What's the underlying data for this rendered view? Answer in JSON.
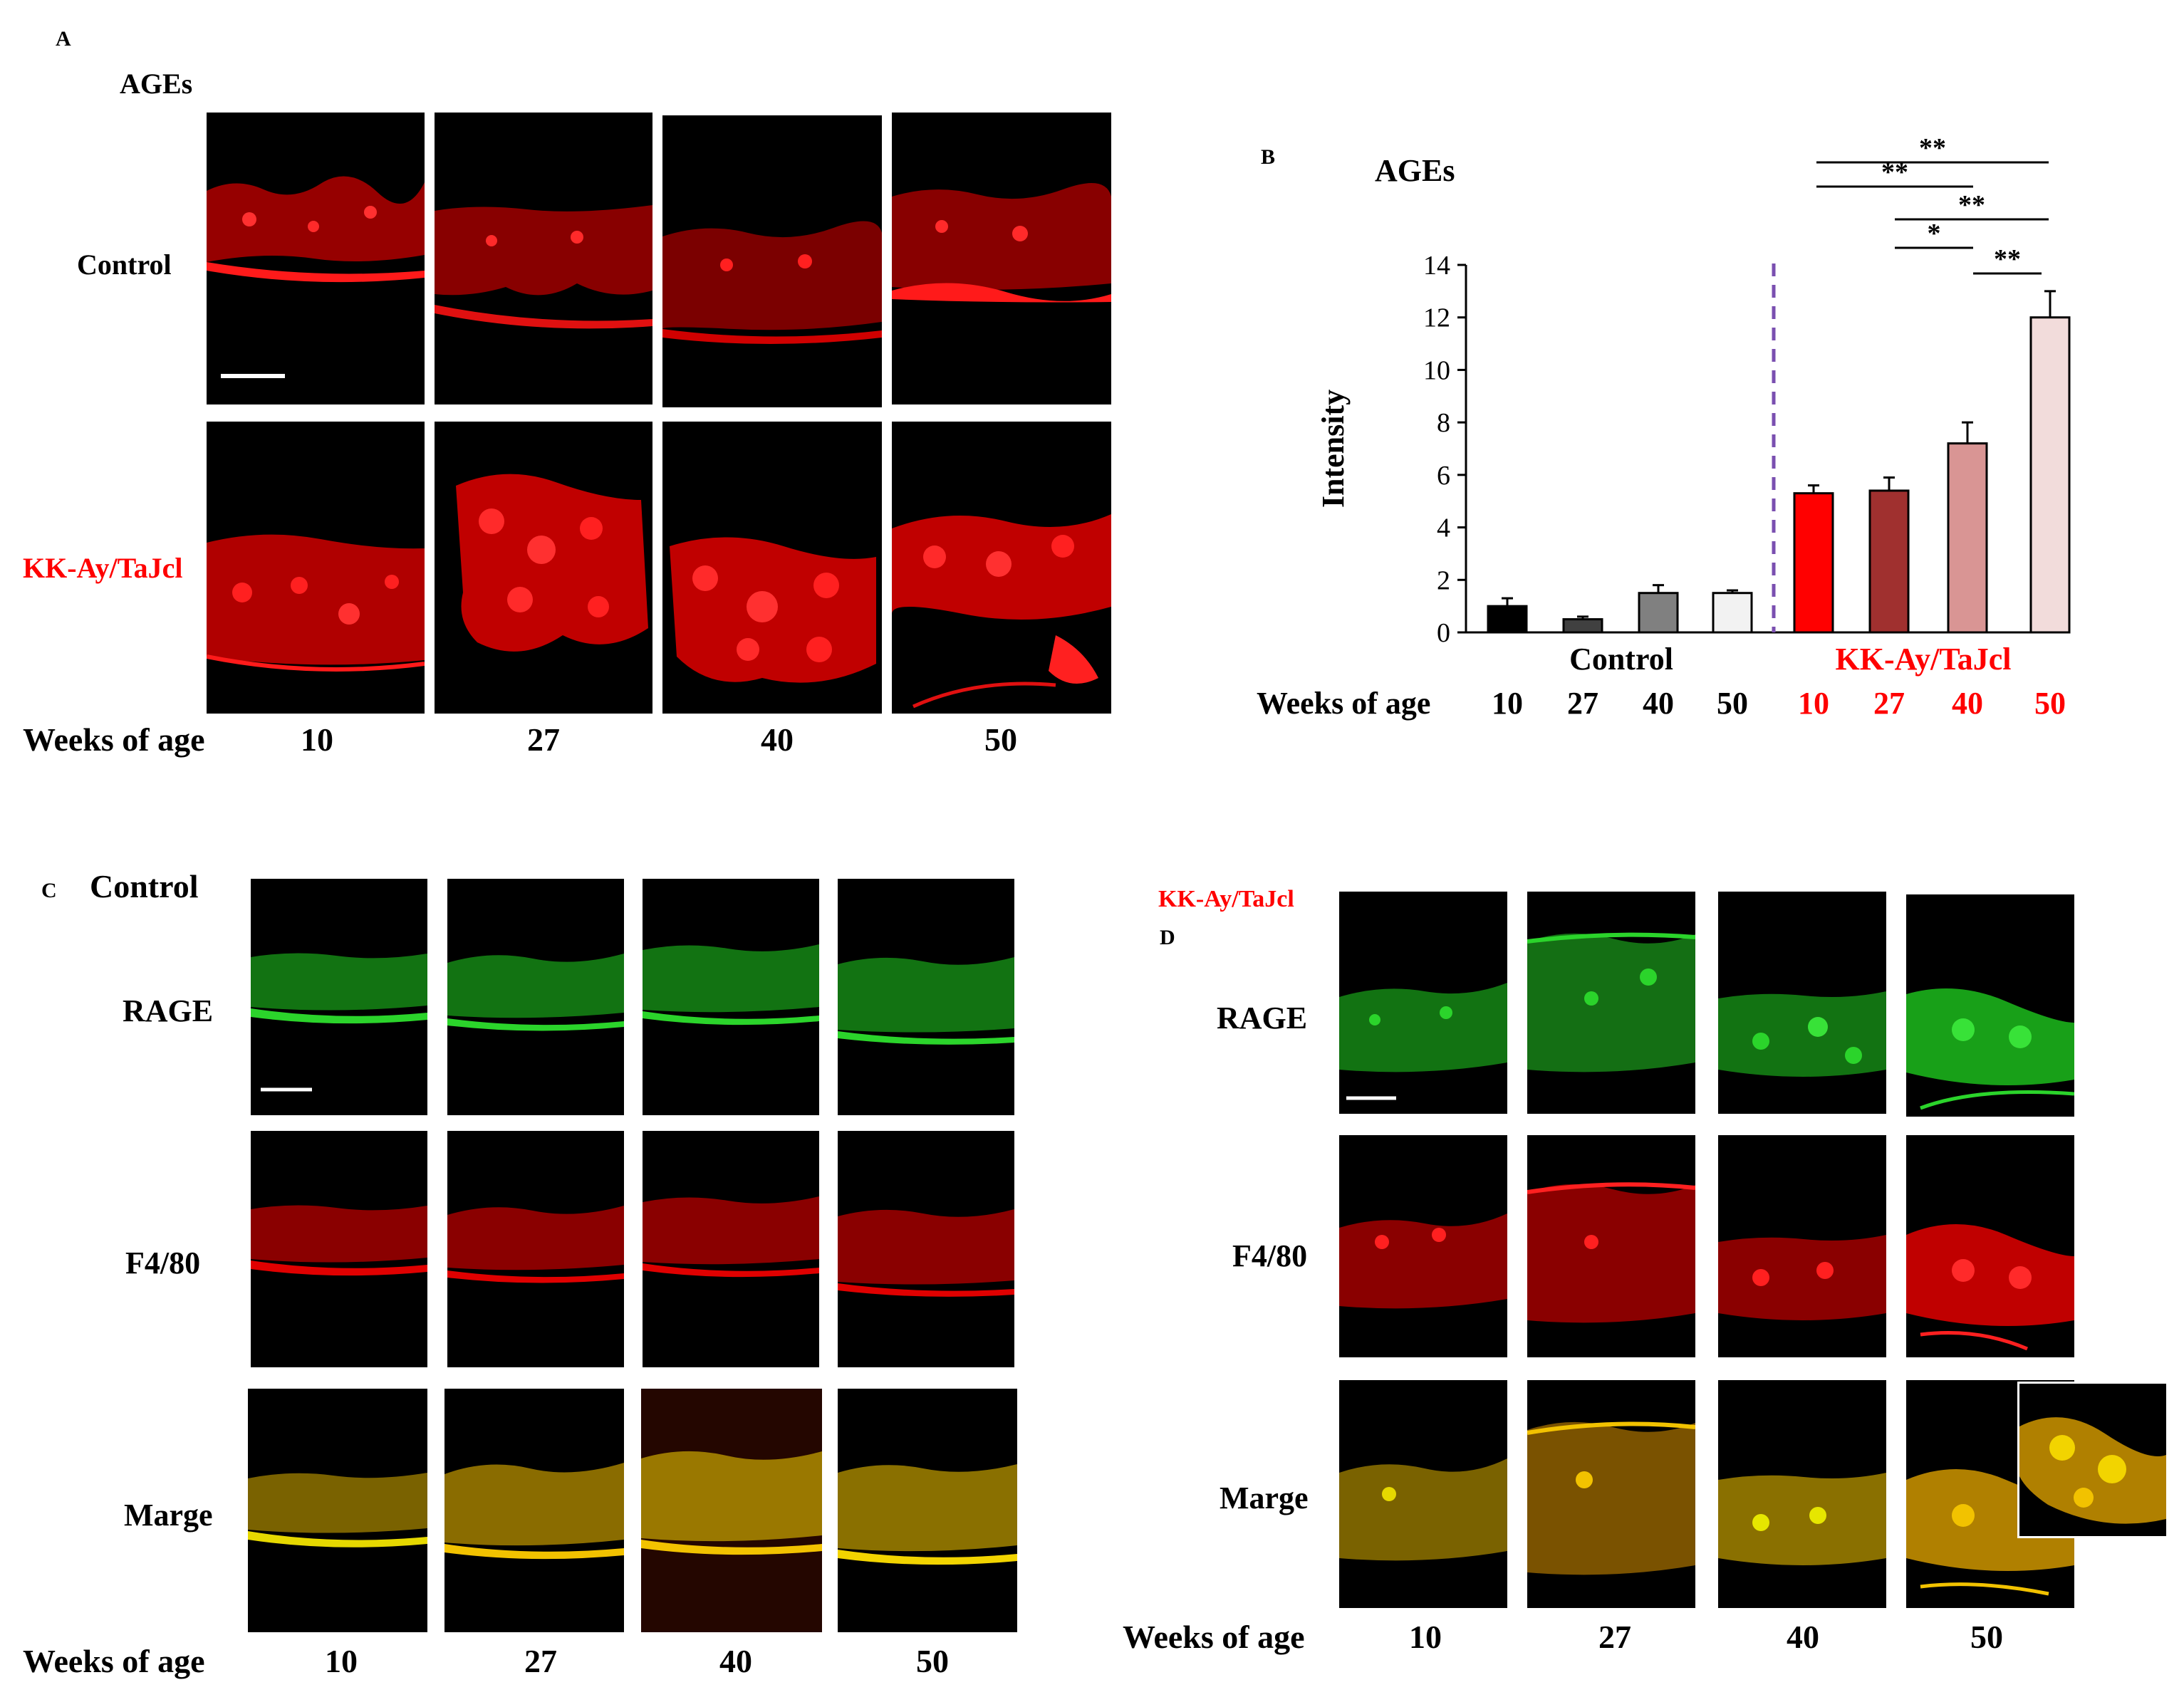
{
  "panels": {
    "A": {
      "letter": "A",
      "title": "AGEs",
      "rows": [
        "Control",
        "KK-Ay/TaJcl"
      ],
      "x_label": "Weeks of age",
      "weeks": [
        "10",
        "27",
        "40",
        "50"
      ]
    },
    "B": {
      "letter": "B",
      "title": "AGEs",
      "groups": [
        "Control",
        "KK-Ay/TaJcl"
      ],
      "x_label": "Weeks of age",
      "week_labels": [
        "10",
        "27",
        "40",
        "50",
        "10",
        "27",
        "40",
        "50"
      ],
      "significance": [
        "**",
        "**",
        "**",
        "*",
        "**"
      ]
    },
    "C": {
      "letter": "C",
      "title": "Control",
      "rows": [
        "RAGE",
        "F4/80",
        "Marge"
      ],
      "x_label": "Weeks of age",
      "weeks": [
        "10",
        "27",
        "40",
        "50"
      ]
    },
    "D": {
      "letter": "D",
      "title": "KK-Ay/TaJcl",
      "rows": [
        "RAGE",
        "F4/80",
        "Marge"
      ],
      "x_label": "Weeks of age",
      "weeks": [
        "10",
        "27",
        "40",
        "50"
      ]
    }
  },
  "colors": {
    "kk_label": "#ff0000",
    "ages_stain": "#e00000",
    "rage_stain": "#1fbf1f",
    "f480_stain": "#d40000",
    "merge_stain": "#d9b300",
    "dashed_divider": "#7a4fb0"
  },
  "chart_data": {
    "type": "bar",
    "title": "AGEs",
    "xlabel": "Weeks of age",
    "ylabel": "Intensity",
    "ylim": [
      0,
      14
    ],
    "yticks": [
      0,
      2,
      4,
      6,
      8,
      10,
      12,
      14
    ],
    "groups": [
      "Control",
      "KK-Ay/TaJcl"
    ],
    "categories": [
      "10",
      "27",
      "40",
      "50",
      "10",
      "27",
      "40",
      "50"
    ],
    "values": [
      1.0,
      0.5,
      1.5,
      1.5,
      5.3,
      5.4,
      7.2,
      12.0
    ],
    "errors": [
      0.3,
      0.1,
      0.3,
      0.1,
      0.3,
      0.5,
      0.8,
      1.0
    ],
    "bar_colors": [
      "#000000",
      "#404040",
      "#808080",
      "#f2f2f2",
      "#ff0000",
      "#a0302f",
      "#d99594",
      "#f2dcdb"
    ],
    "significance": [
      {
        "from": 4,
        "to": 7,
        "label": "**"
      },
      {
        "from": 4,
        "to": 6,
        "label": "**"
      },
      {
        "from": 5,
        "to": 7,
        "label": "**"
      },
      {
        "from": 5,
        "to": 6,
        "label": "*"
      },
      {
        "from": 6,
        "to": 7,
        "label": "**"
      }
    ]
  }
}
